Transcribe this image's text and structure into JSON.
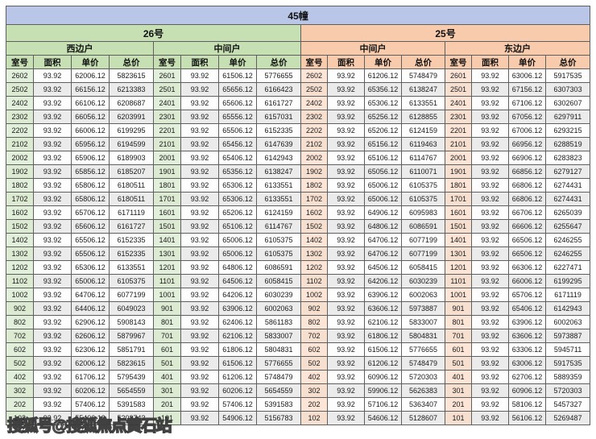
{
  "title": "45幢",
  "watermark": "搜狐号@搜狐焦点黄石站",
  "labels": {
    "room": "室号",
    "area": "面积",
    "unit_price": "单价",
    "total_price": "总价"
  },
  "sections": [
    {
      "label": "26号",
      "units": [
        "西边户",
        "中间户"
      ]
    },
    {
      "label": "25号",
      "units": [
        "中间户",
        "东边户"
      ]
    }
  ],
  "colors": {
    "title_bg": "#b9c6e7",
    "section_26_bg": "#c6e0b4",
    "section_25_bg": "#f8cbad",
    "room_cell_green": "#e2efda",
    "room_cell_peach": "#fce4d6",
    "alt_row_bg": "#ebebeb",
    "border": "#5f5f5f"
  },
  "rows": [
    [
      "2602",
      "93.92",
      "62006.12",
      "5823615",
      "2601",
      "93.92",
      "61506.12",
      "5776655",
      "2602",
      "93.92",
      "61206.12",
      "5748479",
      "2601",
      "93.92",
      "63006.12",
      "5917535"
    ],
    [
      "2502",
      "93.92",
      "66156.12",
      "6213383",
      "2501",
      "93.92",
      "65656.12",
      "6166423",
      "2502",
      "93.92",
      "65356.12",
      "6138247",
      "2501",
      "93.92",
      "67156.12",
      "6307303"
    ],
    [
      "2402",
      "93.92",
      "66106.12",
      "6208687",
      "2401",
      "93.92",
      "65606.12",
      "6161727",
      "2402",
      "93.92",
      "65306.12",
      "6133551",
      "2401",
      "93.92",
      "67106.12",
      "6302607"
    ],
    [
      "2302",
      "93.92",
      "66056.12",
      "6203991",
      "2301",
      "93.92",
      "65556.12",
      "6157031",
      "2302",
      "93.92",
      "65256.12",
      "6128855",
      "2301",
      "93.92",
      "67056.12",
      "6297911"
    ],
    [
      "2202",
      "93.92",
      "66006.12",
      "6199295",
      "2201",
      "93.92",
      "65506.12",
      "6152335",
      "2202",
      "93.92",
      "65206.12",
      "6124159",
      "2201",
      "93.92",
      "67006.12",
      "6293215"
    ],
    [
      "2102",
      "93.92",
      "65956.12",
      "6194599",
      "2101",
      "93.92",
      "65456.12",
      "6147639",
      "2102",
      "93.92",
      "65156.12",
      "6119463",
      "2101",
      "93.92",
      "66956.12",
      "6288519"
    ],
    [
      "2002",
      "93.92",
      "65906.12",
      "6189903",
      "2001",
      "93.92",
      "65406.12",
      "6142943",
      "2002",
      "93.92",
      "65106.12",
      "6114767",
      "2001",
      "93.92",
      "66906.12",
      "6283823"
    ],
    [
      "1902",
      "93.92",
      "65856.12",
      "6185207",
      "1901",
      "93.92",
      "65356.12",
      "6138247",
      "1902",
      "93.92",
      "65056.12",
      "6110071",
      "1901",
      "93.92",
      "66856.12",
      "6279127"
    ],
    [
      "1802",
      "93.92",
      "65806.12",
      "6180511",
      "1801",
      "93.92",
      "65306.12",
      "6133551",
      "1802",
      "93.92",
      "65006.12",
      "6105375",
      "1801",
      "93.92",
      "66806.12",
      "6274431"
    ],
    [
      "1702",
      "93.92",
      "65806.12",
      "6180511",
      "1701",
      "93.92",
      "65306.12",
      "6133551",
      "1702",
      "93.92",
      "65006.12",
      "6105375",
      "1701",
      "93.92",
      "66806.12",
      "6274431"
    ],
    [
      "1602",
      "93.92",
      "65706.12",
      "6171119",
      "1601",
      "93.92",
      "65206.12",
      "6124159",
      "1602",
      "93.92",
      "64906.12",
      "6095983",
      "1601",
      "93.92",
      "66706.12",
      "6265039"
    ],
    [
      "1502",
      "93.92",
      "65606.12",
      "6161727",
      "1501",
      "93.92",
      "65106.12",
      "6114767",
      "1502",
      "93.92",
      "64806.12",
      "6086591",
      "1501",
      "93.92",
      "66606.12",
      "6255647"
    ],
    [
      "1402",
      "93.92",
      "65506.12",
      "6152335",
      "1401",
      "93.92",
      "65006.12",
      "6105375",
      "1402",
      "93.92",
      "64706.12",
      "6077199",
      "1401",
      "93.92",
      "66506.12",
      "6246255"
    ],
    [
      "1302",
      "93.92",
      "65506.12",
      "6152335",
      "1301",
      "93.92",
      "65006.12",
      "6105375",
      "1302",
      "93.92",
      "64706.12",
      "6077199",
      "1301",
      "93.92",
      "66506.12",
      "6246255"
    ],
    [
      "1202",
      "93.92",
      "65306.12",
      "6133551",
      "1201",
      "93.92",
      "64806.12",
      "6086591",
      "1202",
      "93.92",
      "64506.12",
      "6058415",
      "1201",
      "93.92",
      "66306.12",
      "6227471"
    ],
    [
      "1102",
      "93.92",
      "65006.12",
      "6105375",
      "1101",
      "93.92",
      "64506.12",
      "6058415",
      "1102",
      "93.92",
      "64206.12",
      "6030239",
      "1101",
      "93.92",
      "66006.12",
      "6199295"
    ],
    [
      "1002",
      "93.92",
      "64706.12",
      "6077199",
      "1001",
      "93.92",
      "64206.12",
      "6030239",
      "1002",
      "93.92",
      "63906.12",
      "6002063",
      "1001",
      "93.92",
      "65706.12",
      "6171119"
    ],
    [
      "902",
      "93.92",
      "64406.12",
      "6049023",
      "901",
      "93.92",
      "63906.12",
      "6002063",
      "902",
      "93.92",
      "63606.12",
      "5973887",
      "901",
      "93.92",
      "65406.12",
      "6142943"
    ],
    [
      "802",
      "93.92",
      "62906.12",
      "5908143",
      "801",
      "93.92",
      "62406.12",
      "5861183",
      "802",
      "93.92",
      "62106.12",
      "5833007",
      "801",
      "93.92",
      "63906.12",
      "6002063"
    ],
    [
      "702",
      "93.92",
      "62606.12",
      "5879967",
      "701",
      "93.92",
      "62106.12",
      "5833007",
      "702",
      "93.92",
      "61806.12",
      "5804831",
      "701",
      "93.92",
      "63606.12",
      "5973887"
    ],
    [
      "602",
      "93.92",
      "62306.12",
      "5851791",
      "601",
      "93.92",
      "61806.12",
      "5804831",
      "602",
      "93.92",
      "61506.12",
      "5776655",
      "601",
      "93.92",
      "63306.12",
      "5945711"
    ],
    [
      "502",
      "93.92",
      "62006.12",
      "5823615",
      "501",
      "93.92",
      "61506.12",
      "5776655",
      "502",
      "93.92",
      "61206.12",
      "5748479",
      "501",
      "93.92",
      "63006.12",
      "5917535"
    ],
    [
      "402",
      "93.92",
      "61706.12",
      "5795439",
      "401",
      "93.92",
      "61206.12",
      "5748479",
      "402",
      "93.92",
      "60906.12",
      "5720303",
      "401",
      "93.92",
      "62706.12",
      "5889359"
    ],
    [
      "302",
      "93.92",
      "60206.12",
      "5654559",
      "301",
      "93.92",
      "60206.12",
      "5654559",
      "302",
      "93.92",
      "59906.12",
      "5626383",
      "301",
      "93.92",
      "60906.12",
      "5720303"
    ],
    [
      "202",
      "93.92",
      "57406.12",
      "5391583",
      "201",
      "93.92",
      "57406.12",
      "5391583",
      "202",
      "93.92",
      "57106.12",
      "5363407",
      "201",
      "93.92",
      "58106.12",
      "5457327"
    ],
    [
      "102",
      "93.92",
      "55406.12",
      "5203743",
      "101",
      "93.92",
      "54906.12",
      "5156783",
      "102",
      "93.92",
      "54606.12",
      "5128607",
      "101",
      "93.92",
      "56106.12",
      "5269487"
    ]
  ]
}
